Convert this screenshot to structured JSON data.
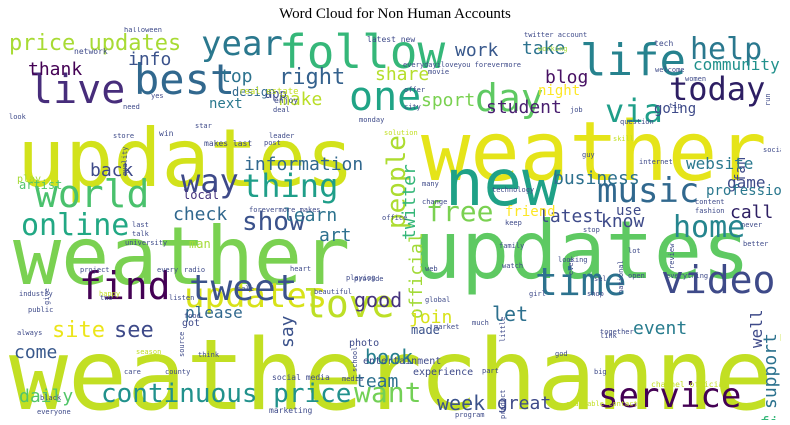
{
  "title": "Word Cloud for Non Human Accounts",
  "words": [
    {
      "text": "weather",
      "color": "#c2df23"
    },
    {
      "text": "channel",
      "color": "#c2df23"
    },
    {
      "text": "updates",
      "color": "#d2e21b"
    },
    {
      "text": "weather",
      "color": "#e5e419"
    },
    {
      "text": "weather",
      "color": "#7ad151"
    },
    {
      "text": "updates",
      "color": "#5ec962"
    },
    {
      "text": "updates",
      "color": "#d8e219"
    },
    {
      "text": "new",
      "color": "#1fa187"
    },
    {
      "text": "follow",
      "color": "#35b779"
    },
    {
      "text": "best",
      "color": "#31688e"
    },
    {
      "text": "life",
      "color": "#26828e"
    },
    {
      "text": "music",
      "color": "#31688e"
    },
    {
      "text": "world",
      "color": "#4ac16d"
    },
    {
      "text": "service",
      "color": "#440154"
    },
    {
      "text": "time",
      "color": "#2c728e"
    },
    {
      "text": "video",
      "color": "#3e4a89"
    },
    {
      "text": "love",
      "color": "#bddf26"
    },
    {
      "text": "tweet",
      "color": "#3b528b"
    },
    {
      "text": "find",
      "color": "#440154"
    },
    {
      "text": "one",
      "color": "#20a486"
    },
    {
      "text": "day",
      "color": "#5ec962"
    },
    {
      "text": "today",
      "color": "#2d1e63"
    },
    {
      "text": "via",
      "color": "#1f9e89"
    },
    {
      "text": "live",
      "color": "#472d7b"
    },
    {
      "text": "year",
      "color": "#2a788e"
    },
    {
      "text": "help",
      "color": "#2a788e"
    },
    {
      "text": "home",
      "color": "#25858e"
    },
    {
      "text": "online",
      "color": "#22a884"
    },
    {
      "text": "free",
      "color": "#7ad151"
    },
    {
      "text": "show",
      "color": "#3b528b"
    },
    {
      "text": "thing",
      "color": "#1f9e89"
    },
    {
      "text": "way",
      "color": "#3e4a89"
    },
    {
      "text": "want",
      "color": "#73d056"
    },
    {
      "text": "continuous price",
      "color": "#21918c"
    },
    {
      "text": "people",
      "color": "#addc30"
    },
    {
      "text": "price updates",
      "color": "#a8db34"
    },
    {
      "text": "information",
      "color": "#31688e"
    },
    {
      "text": "work",
      "color": "#38588c"
    },
    {
      "text": "take",
      "color": "#2c728e"
    },
    {
      "text": "info",
      "color": "#3b528b"
    },
    {
      "text": "thank",
      "color": "#440154"
    },
    {
      "text": "top",
      "color": "#2c728e"
    },
    {
      "text": "right",
      "color": "#34618d"
    },
    {
      "text": "share",
      "color": "#b5de2b"
    },
    {
      "text": "make",
      "color": "#bade28"
    },
    {
      "text": "sport",
      "color": "#7ad151"
    },
    {
      "text": "student",
      "color": "#481d6f"
    },
    {
      "text": "blog",
      "color": "#471063"
    },
    {
      "text": "night",
      "color": "#fde725"
    },
    {
      "text": "community",
      "color": "#21918c"
    },
    {
      "text": "twitter",
      "color": "#35b779"
    },
    {
      "text": "official",
      "color": "#a2da37"
    },
    {
      "text": "business",
      "color": "#2d708e"
    },
    {
      "text": "game",
      "color": "#3e4a89"
    },
    {
      "text": "call",
      "color": "#2d1e63"
    },
    {
      "text": "latest",
      "color": "#3e4a89"
    },
    {
      "text": "know",
      "color": "#3e4a89"
    },
    {
      "text": "check",
      "color": "#31688e"
    },
    {
      "text": "learn",
      "color": "#2c728e"
    },
    {
      "text": "art",
      "color": "#2d708e"
    },
    {
      "text": "back",
      "color": "#3e4a89"
    },
    {
      "text": "local",
      "color": "#46337e"
    },
    {
      "text": "good",
      "color": "#46337e"
    },
    {
      "text": "join",
      "color": "#d8e219"
    },
    {
      "text": "made",
      "color": "#3b528b"
    },
    {
      "text": "let",
      "color": "#2d708e"
    },
    {
      "text": "event",
      "color": "#287c8e"
    },
    {
      "text": "support",
      "color": "#2c728e"
    },
    {
      "text": "book",
      "color": "#277f8e"
    },
    {
      "text": "team",
      "color": "#2d708e"
    },
    {
      "text": "week",
      "color": "#3b528b"
    },
    {
      "text": "great",
      "color": "#3e4a89"
    },
    {
      "text": "first",
      "color": "#35b779"
    },
    {
      "text": "site",
      "color": "#ece51b"
    },
    {
      "text": "see",
      "color": "#3e4a89"
    },
    {
      "text": "come",
      "color": "#38588c"
    },
    {
      "text": "daily",
      "color": "#52c569"
    },
    {
      "text": "say",
      "color": "#3b528b"
    },
    {
      "text": "fan",
      "color": "#3e4a89"
    },
    {
      "text": "website",
      "color": "#2a788e"
    },
    {
      "text": "professional",
      "color": "#2a788e"
    },
    {
      "text": "use",
      "color": "#3e4a89"
    },
    {
      "text": "friend",
      "color": "#fde725"
    },
    {
      "text": "well",
      "color": "#3e4a89"
    },
    {
      "text": "going",
      "color": "#3e4a89"
    },
    {
      "text": "next",
      "color": "#2a788e"
    },
    {
      "text": "design",
      "color": "#31688e"
    },
    {
      "text": "app",
      "color": "#3e4a89"
    },
    {
      "text": "please",
      "color": "#31688e"
    },
    {
      "text": "man",
      "color": "#a5db36"
    },
    {
      "text": "play",
      "color": "#a5db36"
    },
    {
      "text": "artist",
      "color": "#52c569"
    },
    {
      "text": "got",
      "color": "#3e4a89"
    },
    {
      "text": "photo",
      "color": "#3e4a89"
    },
    {
      "text": "entertainment",
      "color": "#3e4a89"
    },
    {
      "text": "experience",
      "color": "#3e4a89"
    },
    {
      "text": "marketing",
      "color": "#3e4a89"
    },
    {
      "text": "social media",
      "color": "#3e4a89"
    },
    {
      "text": "makes last",
      "color": "#3e4a89"
    },
    {
      "text": "forevermore makes",
      "color": "#3e4a89"
    },
    {
      "text": "latest new",
      "color": "#3e4a89"
    },
    {
      "text": "everydayiloveyou forevermore",
      "color": "#3e4a89"
    },
    {
      "text": "twitter account",
      "color": "#3e4a89"
    },
    {
      "text": "available contact",
      "color": "#c2df23"
    },
    {
      "text": "channel official",
      "color": "#c2df23"
    },
    {
      "text": "real estate",
      "color": "#c2df23"
    },
    {
      "text": "network",
      "color": "#3e4a89"
    },
    {
      "text": "halloween",
      "color": "#3e4a89"
    },
    {
      "text": "tech",
      "color": "#3e4a89"
    },
    {
      "text": "welcome",
      "color": "#3e4a89"
    },
    {
      "text": "working",
      "color": "#a5db36"
    },
    {
      "text": "movie",
      "color": "#3e4a89"
    },
    {
      "text": "offer",
      "color": "#3e4a89"
    },
    {
      "text": "city",
      "color": "#3e4a89"
    },
    {
      "text": "enjoy",
      "color": "#3e4a89"
    },
    {
      "text": "deal",
      "color": "#3e4a89"
    },
    {
      "text": "yes",
      "color": "#3e4a89"
    },
    {
      "text": "need",
      "color": "#3e4a89"
    },
    {
      "text": "look",
      "color": "#3e4a89"
    },
    {
      "text": "store",
      "color": "#3e4a89"
    },
    {
      "text": "win",
      "color": "#3e4a89"
    },
    {
      "text": "star",
      "color": "#3e4a89"
    },
    {
      "text": "leader",
      "color": "#3e4a89"
    },
    {
      "text": "post",
      "color": "#3e4a89"
    },
    {
      "text": "monday",
      "color": "#3e4a89"
    },
    {
      "text": "solution",
      "color": "#c2df23"
    },
    {
      "text": "job",
      "color": "#3e4a89"
    },
    {
      "text": "question",
      "color": "#3e4a89"
    },
    {
      "text": "tip",
      "color": "#3e4a89"
    },
    {
      "text": "women",
      "color": "#3e4a89"
    },
    {
      "text": "run",
      "color": "#3e4a89"
    },
    {
      "text": "social",
      "color": "#3e4a89"
    },
    {
      "text": "guy",
      "color": "#3e4a89"
    },
    {
      "text": "skill",
      "color": "#c2df23"
    },
    {
      "text": "internet",
      "color": "#3e4a89"
    },
    {
      "text": "many",
      "color": "#3e4a89"
    },
    {
      "text": "change",
      "color": "#3e4a89"
    },
    {
      "text": "technology",
      "color": "#3e4a89"
    },
    {
      "text": "content",
      "color": "#3e4a89"
    },
    {
      "text": "fashion",
      "color": "#3e4a89"
    },
    {
      "text": "never",
      "color": "#3e4a89"
    },
    {
      "text": "better",
      "color": "#3e4a89"
    },
    {
      "text": "office",
      "color": "#3e4a89"
    },
    {
      "text": "keep",
      "color": "#3e4a89"
    },
    {
      "text": "family",
      "color": "#3e4a89"
    },
    {
      "text": "stop",
      "color": "#3e4a89"
    },
    {
      "text": "watch",
      "color": "#3e4a89"
    },
    {
      "text": "looking",
      "color": "#3e4a89"
    },
    {
      "text": "even",
      "color": "#3e4a89"
    },
    {
      "text": "national",
      "color": "#3e4a89"
    },
    {
      "text": "review",
      "color": "#3e4a89"
    },
    {
      "text": "everything",
      "color": "#3e4a89"
    },
    {
      "text": "open",
      "color": "#3e4a89"
    },
    {
      "text": "shop",
      "color": "#3e4a89"
    },
    {
      "text": "last",
      "color": "#3e4a89"
    },
    {
      "text": "talk",
      "color": "#3e4a89"
    },
    {
      "text": "university",
      "color": "#3e4a89"
    },
    {
      "text": "quality",
      "color": "#3e4a89"
    },
    {
      "text": "every",
      "color": "#3e4a89"
    },
    {
      "text": "radio",
      "color": "#3e4a89"
    },
    {
      "text": "project",
      "color": "#3e4a89"
    },
    {
      "text": "happy",
      "color": "#c2df23"
    },
    {
      "text": "two",
      "color": "#3e4a89"
    },
    {
      "text": "listen",
      "color": "#3e4a89"
    },
    {
      "text": "industry",
      "color": "#3e4a89"
    },
    {
      "text": "give",
      "color": "#3e4a89"
    },
    {
      "text": "public",
      "color": "#3e4a89"
    },
    {
      "text": "always",
      "color": "#3e4a89"
    },
    {
      "text": "black",
      "color": "#3e4a89"
    },
    {
      "text": "care",
      "color": "#3e4a89"
    },
    {
      "text": "season",
      "color": "#c2df23"
    },
    {
      "text": "source",
      "color": "#3e4a89"
    },
    {
      "text": "food",
      "color": "#3e4a89"
    },
    {
      "text": "think",
      "color": "#3e4a89"
    },
    {
      "text": "county",
      "color": "#3e4a89"
    },
    {
      "text": "heart",
      "color": "#3e4a89"
    },
    {
      "text": "beautiful",
      "color": "#3e4a89"
    },
    {
      "text": "global",
      "color": "#3e4a89"
    },
    {
      "text": "school",
      "color": "#3e4a89"
    },
    {
      "text": "media",
      "color": "#3e4a89"
    },
    {
      "text": "playing",
      "color": "#3e4a89"
    },
    {
      "text": "provide",
      "color": "#3e4a89"
    },
    {
      "text": "web",
      "color": "#3e4a89"
    },
    {
      "text": "girl",
      "color": "#3e4a89"
    },
    {
      "text": "little",
      "color": "#3e4a89"
    },
    {
      "text": "much",
      "color": "#3e4a89"
    },
    {
      "text": "part",
      "color": "#3e4a89"
    },
    {
      "text": "product",
      "color": "#3e4a89"
    },
    {
      "text": "god",
      "color": "#3e4a89"
    },
    {
      "text": "big",
      "color": "#3e4a89"
    },
    {
      "text": "link",
      "color": "#3e4a89"
    },
    {
      "text": "together",
      "color": "#3e4a89"
    },
    {
      "text": "program",
      "color": "#3e4a89"
    },
    {
      "text": "everyone",
      "color": "#3e4a89"
    },
    {
      "text": "sel",
      "color": "#3e4a89"
    },
    {
      "text": "sale",
      "color": "#3e4a89"
    },
    {
      "text": "market",
      "color": "#3e4a89"
    },
    {
      "text": "lot",
      "color": "#3e4a89"
    }
  ]
}
